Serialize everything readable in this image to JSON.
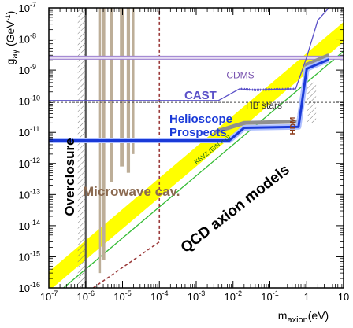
{
  "chart_data": {
    "type": "exclusion-plot",
    "x_scale": "log",
    "y_scale": "log",
    "xlim": [
      1e-07,
      10
    ],
    "ylim": [
      1e-16,
      1e-07
    ],
    "xlabel": {
      "base": "m",
      "sub": "axion",
      "tail": "(eV)"
    },
    "ylabel": {
      "base": "g",
      "sub": "aγ",
      "tail": " (GeV",
      "sup": "-1",
      "close": ")"
    },
    "x_ticks": [
      {
        "value": 1e-07,
        "label": "10",
        "exp": "-7"
      },
      {
        "value": 1e-06,
        "label": "10",
        "exp": "-6"
      },
      {
        "value": 1e-05,
        "label": "10",
        "exp": "-5"
      },
      {
        "value": 0.0001,
        "label": "10",
        "exp": "-4"
      },
      {
        "value": 0.001,
        "label": "10",
        "exp": "-3"
      },
      {
        "value": 0.01,
        "label": "10",
        "exp": "-2"
      },
      {
        "value": 0.1,
        "label": "10",
        "exp": "-1"
      },
      {
        "value": 1,
        "label": "1",
        "exp": ""
      },
      {
        "value": 10,
        "label": "10",
        "exp": ""
      }
    ],
    "y_ticks": [
      {
        "value": 1e-16,
        "label": "10",
        "exp": "-16"
      },
      {
        "value": 1e-15,
        "label": "10",
        "exp": "-15"
      },
      {
        "value": 1e-14,
        "label": "10",
        "exp": "-14"
      },
      {
        "value": 1e-13,
        "label": "10",
        "exp": "-13"
      },
      {
        "value": 1e-12,
        "label": "10",
        "exp": "-12"
      },
      {
        "value": 1e-11,
        "label": "10",
        "exp": "-11"
      },
      {
        "value": 1e-10,
        "label": "10",
        "exp": "-10"
      },
      {
        "value": 1e-09,
        "label": "10",
        "exp": "-9"
      },
      {
        "value": 1e-08,
        "label": "10",
        "exp": "-8"
      },
      {
        "value": 1e-07,
        "label": "10",
        "exp": "-7"
      }
    ],
    "qcd_band": {
      "label": "QCD axion models",
      "color": "#ffff00",
      "lower": [
        [
          1e-07,
          8e-17
        ],
        [
          10,
          8e-09
        ]
      ],
      "upper": [
        [
          3e-08,
          1e-16
        ],
        [
          10,
          3.5e-08
        ]
      ]
    },
    "ksvz_line": {
      "label": "KSVZ (E/N = 0)",
      "color": "#33bb33",
      "points": [
        [
          1e-07,
          4e-17
        ],
        [
          10,
          4e-09
        ]
      ]
    },
    "overclosure": {
      "label": "Overclosure",
      "x": 1e-06,
      "color": "#555555"
    },
    "microwave_cavity": {
      "label": "Microwave cav.",
      "color": "#bdae98",
      "text_color": "#8b6a50",
      "bars": [
        {
          "x0": 2.3e-06,
          "x1": 2.6e-06,
          "y_bottom": 3e-16
        },
        {
          "x0": 2.7e-06,
          "x1": 3.4e-06,
          "y_bottom": 8e-16
        },
        {
          "x0": 4.6e-06,
          "x1": 5.5e-06,
          "y_bottom": 2.5e-13
        },
        {
          "x0": 8.5e-06,
          "x1": 1.1e-05,
          "y_bottom": 8e-13
        },
        {
          "x0": 1.3e-05,
          "x1": 1.6e-05,
          "y_bottom": 5e-13
        },
        {
          "x0": 1.8e-05,
          "x1": 2.1e-05,
          "y_bottom": 2e-12
        }
      ],
      "prospect_dashed": {
        "color": "#9b3b3b",
        "points": [
          [
            1.6e-06,
            1e-16
          ],
          [
            0.0001,
            3e-15
          ],
          [
            0.0001,
            1e-07
          ]
        ]
      }
    },
    "cdms": {
      "label": "CDMS",
      "y": 2.5e-09,
      "color": "#9b7fcf"
    },
    "cast": {
      "label": "CAST",
      "color": "#5a50c8",
      "points": [
        [
          1e-07,
          1.05e-10
        ],
        [
          0.004,
          1.05e-10
        ],
        [
          0.015,
          2.5e-10
        ],
        [
          0.04,
          2.3e-10
        ],
        [
          0.1,
          2.4e-10
        ],
        [
          0.5,
          2.5e-10
        ],
        [
          1.0,
          2.6e-09
        ],
        [
          2.0,
          4e-08
        ],
        [
          4.0,
          1e-07
        ]
      ]
    },
    "hb_stars": {
      "label": "HB stars",
      "y": 1e-10,
      "color": "#444444"
    },
    "hdm": {
      "label": "HDM",
      "x": 0.9,
      "color": "#8b3a1a"
    },
    "helioscope_prospects": {
      "label": "Helioscope Prospects",
      "color": "#1a3ad8",
      "points": [
        [
          1e-07,
          5.5e-12
        ],
        [
          0.008,
          5.5e-12
        ],
        [
          0.02,
          1.4e-11
        ],
        [
          0.6,
          1.5e-11
        ],
        [
          1.0,
          1.1e-09
        ],
        [
          4.0,
          2.2e-09
        ]
      ]
    },
    "helioscope_gray": {
      "color": "#909090",
      "points": [
        [
          0.003,
          1e-11
        ],
        [
          0.02,
          2e-11
        ],
        [
          0.6,
          2.2e-11
        ],
        [
          1.0,
          1.5e-09
        ],
        [
          4.0,
          3e-09
        ]
      ]
    }
  }
}
